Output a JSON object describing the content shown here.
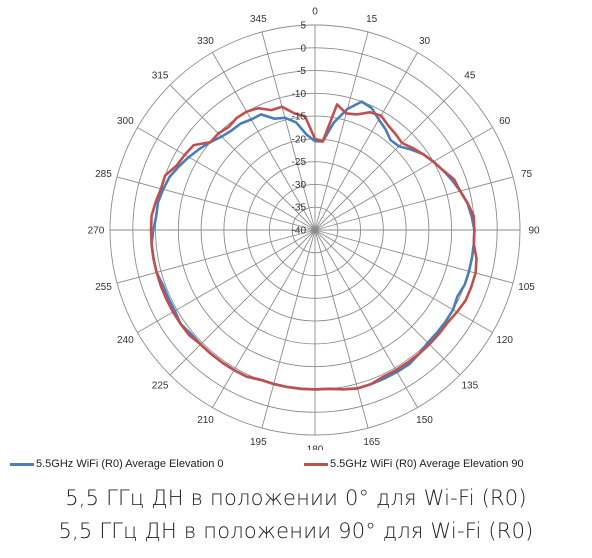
{
  "chart_data": {
    "type": "polar-line",
    "angles": [
      0,
      15,
      30,
      45,
      60,
      75,
      90,
      105,
      120,
      135,
      150,
      165,
      180,
      195,
      210,
      225,
      240,
      255,
      270,
      285,
      300,
      315,
      330,
      345
    ],
    "angle_labels": [
      "0",
      "15",
      "30",
      "45",
      "60",
      "75",
      "90",
      "105",
      "120",
      "135",
      "150",
      "165",
      "180",
      "195",
      "210",
      "225",
      "240",
      "255",
      "270",
      "285",
      "300",
      "315",
      "330",
      "345"
    ],
    "radial_range": [
      -40,
      5
    ],
    "radial_ticks": [
      5,
      0,
      -5,
      -10,
      -15,
      -20,
      -25,
      -30,
      -35,
      -40
    ],
    "radial_tick_labels": [
      "5",
      "0",
      "-5",
      "-10",
      "-15",
      "-20",
      "-25",
      "-30",
      "-35",
      "-40"
    ],
    "grid": true,
    "legend_position": "bottom",
    "series": [
      {
        "name": "5.5GHz WiFi (R0) Average Elevation 0",
        "color": "#4a7ebb",
        "points": [
          [
            0,
            -20.5
          ],
          [
            5,
            -20.5
          ],
          [
            10,
            -16
          ],
          [
            15,
            -12.5
          ],
          [
            20,
            -10
          ],
          [
            25,
            -10.5
          ],
          [
            30,
            -12
          ],
          [
            35,
            -13
          ],
          [
            40,
            -14.2
          ],
          [
            45,
            -14
          ],
          [
            50,
            -12.5
          ],
          [
            55,
            -11
          ],
          [
            60,
            -10
          ],
          [
            65,
            -9
          ],
          [
            70,
            -8
          ],
          [
            75,
            -7
          ],
          [
            80,
            -6
          ],
          [
            85,
            -5.5
          ],
          [
            90,
            -5
          ],
          [
            95,
            -5
          ],
          [
            100,
            -5
          ],
          [
            105,
            -5
          ],
          [
            110,
            -5
          ],
          [
            115,
            -5.5
          ],
          [
            120,
            -5
          ],
          [
            125,
            -5
          ],
          [
            130,
            -5
          ],
          [
            135,
            -5
          ],
          [
            140,
            -4.5
          ],
          [
            145,
            -4
          ],
          [
            150,
            -4
          ],
          [
            155,
            -4
          ],
          [
            160,
            -4
          ],
          [
            165,
            -4
          ],
          [
            170,
            -4.5
          ],
          [
            175,
            -5
          ],
          [
            180,
            -5
          ],
          [
            185,
            -5
          ],
          [
            190,
            -5
          ],
          [
            195,
            -5
          ],
          [
            200,
            -5
          ],
          [
            205,
            -4.5
          ],
          [
            210,
            -4.5
          ],
          [
            215,
            -4.5
          ],
          [
            220,
            -4.5
          ],
          [
            225,
            -4.5
          ],
          [
            230,
            -4.5
          ],
          [
            235,
            -4
          ],
          [
            240,
            -4.5
          ],
          [
            245,
            -4.5
          ],
          [
            250,
            -4.5
          ],
          [
            255,
            -4
          ],
          [
            260,
            -4
          ],
          [
            265,
            -4
          ],
          [
            270,
            -4.5
          ],
          [
            275,
            -5
          ],
          [
            280,
            -5
          ],
          [
            285,
            -5.5
          ],
          [
            290,
            -6
          ],
          [
            295,
            -7
          ],
          [
            300,
            -8
          ],
          [
            305,
            -9
          ],
          [
            310,
            -10
          ],
          [
            315,
            -11
          ],
          [
            320,
            -11.5
          ],
          [
            325,
            -11.5
          ],
          [
            330,
            -12
          ],
          [
            335,
            -12
          ],
          [
            340,
            -14
          ],
          [
            345,
            -14.5
          ],
          [
            350,
            -16
          ],
          [
            355,
            -19
          ],
          [
            360,
            -20.5
          ]
        ]
      },
      {
        "name": "5.5GHz WiFi (R0) Average Elevation 90",
        "color": "#c0504d",
        "points": [
          [
            0,
            -20
          ],
          [
            5,
            -20.5
          ],
          [
            10,
            -12
          ],
          [
            15,
            -13.5
          ],
          [
            20,
            -13
          ],
          [
            25,
            -11.5
          ],
          [
            30,
            -11
          ],
          [
            35,
            -12
          ],
          [
            40,
            -12.5
          ],
          [
            45,
            -13
          ],
          [
            50,
            -12
          ],
          [
            55,
            -11
          ],
          [
            60,
            -10
          ],
          [
            65,
            -9
          ],
          [
            70,
            -7.5
          ],
          [
            75,
            -7
          ],
          [
            80,
            -6
          ],
          [
            85,
            -5
          ],
          [
            90,
            -5
          ],
          [
            95,
            -5
          ],
          [
            100,
            -4
          ],
          [
            105,
            -3.5
          ],
          [
            110,
            -3.5
          ],
          [
            115,
            -3.5
          ],
          [
            120,
            -4
          ],
          [
            125,
            -4.5
          ],
          [
            130,
            -4.5
          ],
          [
            135,
            -4.5
          ],
          [
            140,
            -4.5
          ],
          [
            145,
            -4.5
          ],
          [
            150,
            -4.5
          ],
          [
            155,
            -4.5
          ],
          [
            160,
            -4
          ],
          [
            165,
            -4
          ],
          [
            170,
            -4.5
          ],
          [
            175,
            -5
          ],
          [
            180,
            -5
          ],
          [
            185,
            -5
          ],
          [
            190,
            -5
          ],
          [
            195,
            -5
          ],
          [
            200,
            -5
          ],
          [
            205,
            -4.5
          ],
          [
            210,
            -4.5
          ],
          [
            215,
            -4.5
          ],
          [
            220,
            -4.5
          ],
          [
            225,
            -4.5
          ],
          [
            230,
            -4
          ],
          [
            235,
            -4
          ],
          [
            240,
            -4
          ],
          [
            245,
            -4
          ],
          [
            250,
            -4
          ],
          [
            255,
            -4
          ],
          [
            260,
            -4
          ],
          [
            265,
            -4
          ],
          [
            270,
            -4
          ],
          [
            275,
            -4
          ],
          [
            280,
            -4.5
          ],
          [
            285,
            -5
          ],
          [
            290,
            -5
          ],
          [
            295,
            -6.5
          ],
          [
            300,
            -7
          ],
          [
            305,
            -7.5
          ],
          [
            310,
            -10
          ],
          [
            315,
            -10
          ],
          [
            320,
            -10.5
          ],
          [
            325,
            -10
          ],
          [
            330,
            -10
          ],
          [
            335,
            -10.5
          ],
          [
            340,
            -12
          ],
          [
            345,
            -12
          ],
          [
            350,
            -14
          ],
          [
            355,
            -15
          ],
          [
            360,
            -20
          ]
        ]
      }
    ]
  },
  "captions": {
    "line1": "5,5 ГГц  ДН в положении 0° для Wi-Fi (R0)",
    "line2": "5,5 ГГц  ДН в положении 90° для Wi-Fi (R0)"
  }
}
